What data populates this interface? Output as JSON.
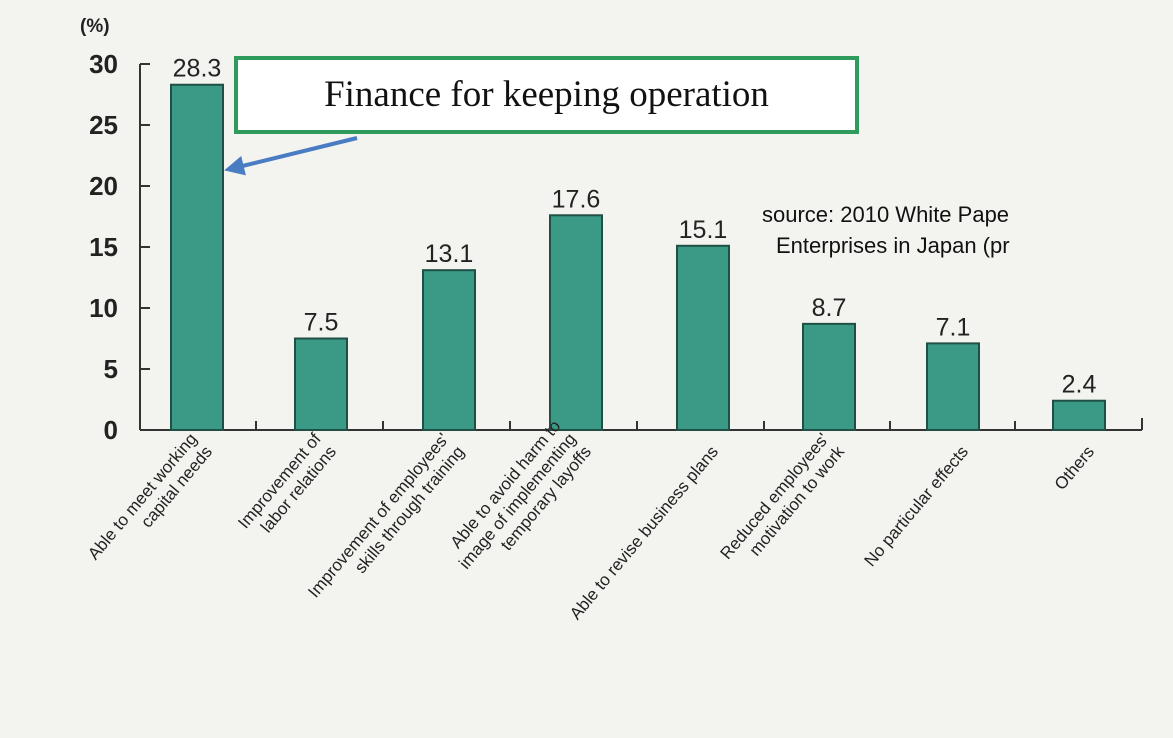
{
  "chart_data": {
    "type": "bar",
    "unit_label": "(%)",
    "categories": [
      [
        "Able to meet working",
        "capital needs"
      ],
      [
        "Improvement of",
        "labor relations"
      ],
      [
        "Improvement of employees'",
        "skills through training"
      ],
      [
        "Able to avoid harm to",
        "image of implementing",
        "temporary layoffs"
      ],
      [
        "Able to revise business plans"
      ],
      [
        "Reduced employees'",
        "motivation to work"
      ],
      [
        "No particular effects"
      ],
      [
        "Others"
      ]
    ],
    "values": [
      28.3,
      7.5,
      13.1,
      17.6,
      15.1,
      8.7,
      7.1,
      2.4
    ],
    "value_labels": [
      "28.3",
      "7.5",
      "13.1",
      "17.6",
      "15.1",
      "8.7",
      "7.1",
      "2.4"
    ],
    "yticks": [
      "0",
      "5",
      "10",
      "15",
      "20",
      "25",
      "30"
    ],
    "ylim": [
      0,
      30
    ],
    "grid": false,
    "bar_color": "#3a9a86"
  },
  "callout": {
    "text": "Finance for keeping operation"
  },
  "source": {
    "line1": "source: 2010 White Pape",
    "line2": "Enterprises in Japan (pr"
  },
  "colors": {
    "callout_border": "#2e9a5b",
    "arrow": "#4a7cc3"
  }
}
